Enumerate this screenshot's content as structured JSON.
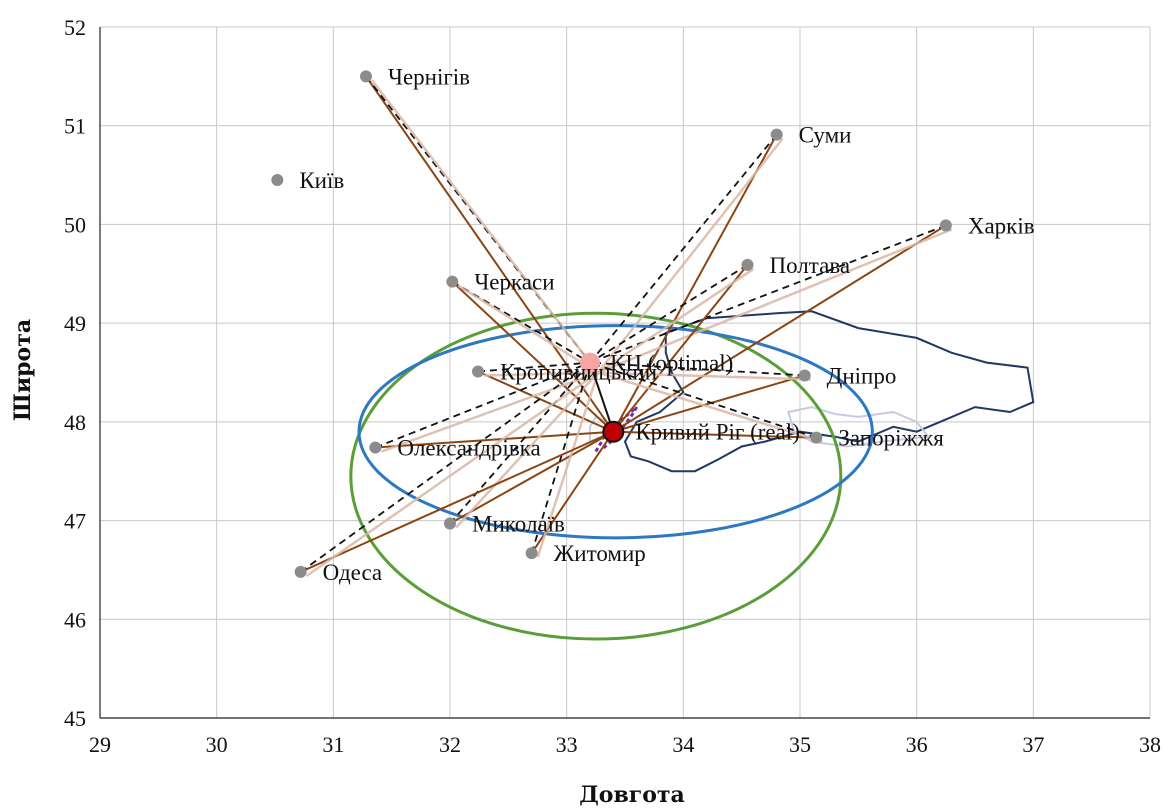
{
  "chart_data": {
    "type": "scatter",
    "title": "",
    "xlabel": "Довгота",
    "ylabel": "Широта",
    "xlim": [
      29,
      38
    ],
    "ylim": [
      45,
      52
    ],
    "xticks": [
      29,
      30,
      31,
      32,
      33,
      34,
      35,
      36,
      37,
      38
    ],
    "yticks": [
      45,
      46,
      47,
      48,
      49,
      50,
      51,
      52
    ],
    "grid": true,
    "legend": "none",
    "colors": {
      "point": "#8c8c8c",
      "optimal": "#f4a6a6",
      "real": "#c00000",
      "line_brown": "#8b4513",
      "line_black": "#111111",
      "line_light": "#d9b8a6",
      "ellipse_green": "#5a9e3a",
      "ellipse_blue": "#2e78c2",
      "region_dark": "#1f3864",
      "region_light": "#c5cbe0",
      "region_purple": "#7030a0"
    },
    "points": [
      {
        "name": "Київ",
        "x": 30.52,
        "y": 50.45
      },
      {
        "name": "Чернігів",
        "x": 31.28,
        "y": 51.5
      },
      {
        "name": "Суми",
        "x": 34.8,
        "y": 50.91
      },
      {
        "name": "Харків",
        "x": 36.25,
        "y": 49.99
      },
      {
        "name": "Полтава",
        "x": 34.55,
        "y": 49.59
      },
      {
        "name": "Черкаси",
        "x": 32.02,
        "y": 49.42
      },
      {
        "name": "Кропивницький",
        "x": 32.24,
        "y": 48.51
      },
      {
        "name": "Дніпро",
        "x": 35.04,
        "y": 48.47
      },
      {
        "name": "Запоріжжя",
        "x": 35.14,
        "y": 47.84
      },
      {
        "name": "Олександрівка",
        "x": 31.36,
        "y": 47.74
      },
      {
        "name": "Миколаїв",
        "x": 32.0,
        "y": 46.97
      },
      {
        "name": "Житомир",
        "x": 32.7,
        "y": 46.67
      },
      {
        "name": "Одеса",
        "x": 30.72,
        "y": 46.48
      }
    ],
    "optimal_center": {
      "label": "КЦ (optimal)",
      "x": 33.2,
      "y": 48.6
    },
    "real_center": {
      "label": "Кривий Ріг (real)",
      "x": 33.4,
      "y": 47.9
    },
    "ellipses": [
      {
        "name": "green",
        "cx": 33.25,
        "cy": 47.45,
        "rx": 2.1,
        "ry": 3.3
      },
      {
        "name": "blue",
        "cx": 33.42,
        "cy": 47.9,
        "rx": 2.2,
        "ry": 2.15
      }
    ]
  }
}
